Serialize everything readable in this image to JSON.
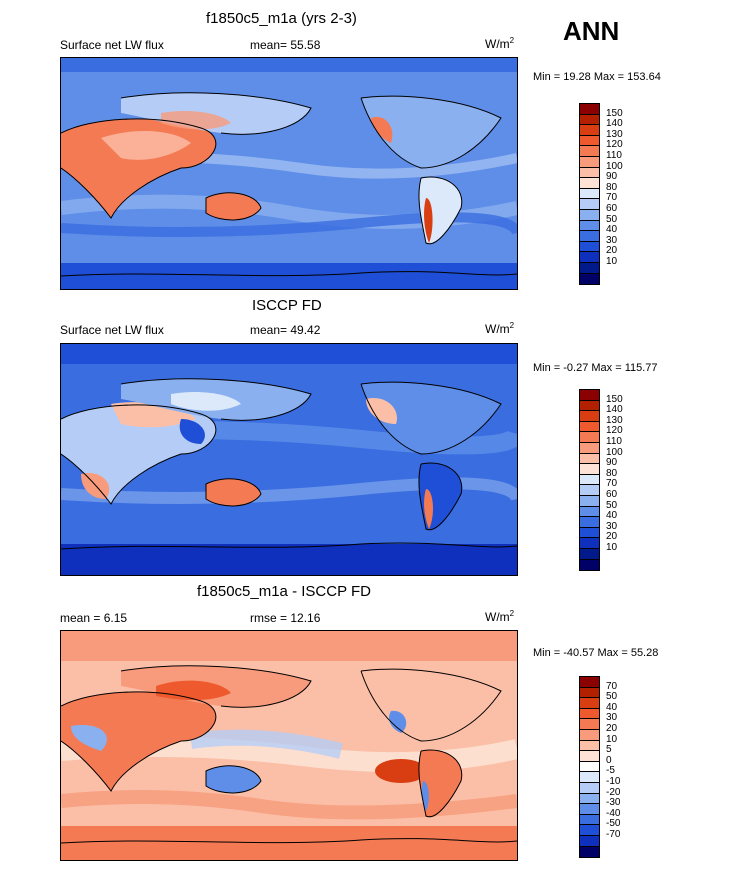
{
  "season_label": "ANN",
  "panels": [
    {
      "title": "f1850c5_m1a (yrs 2-3)",
      "left_label": "Surface net LW flux",
      "stat_label": "mean=",
      "stat_value": "55.58",
      "units_base": "W/m",
      "units_exp": "2",
      "minmax": "Min =  19.28 Max = 153.64",
      "colorbar": {
        "colors": [
          "#8b0000",
          "#b22000",
          "#d83e12",
          "#ee5a2e",
          "#f47a54",
          "#f89b7c",
          "#fbbfa7",
          "#fde2d5",
          "#dbe9fb",
          "#b5cdf6",
          "#8bb0ef",
          "#5e8ee8",
          "#3a6de0",
          "#1f4fd6",
          "#0f2fbd",
          "#001a8c",
          "#000066"
        ],
        "labels": [
          "150",
          "140",
          "130",
          "120",
          "110",
          "100",
          "90",
          "80",
          "70",
          "60",
          "50",
          "40",
          "30",
          "20",
          "10"
        ]
      }
    },
    {
      "title": "ISCCP FD",
      "left_label": "Surface net LW flux",
      "stat_label": "mean=",
      "stat_value": "49.42",
      "units_base": "W/m",
      "units_exp": "2",
      "minmax": "Min =  -0.27 Max = 115.77",
      "colorbar": {
        "colors": [
          "#8b0000",
          "#b22000",
          "#d83e12",
          "#ee5a2e",
          "#f47a54",
          "#f89b7c",
          "#fbbfa7",
          "#fde2d5",
          "#dbe9fb",
          "#b5cdf6",
          "#8bb0ef",
          "#5e8ee8",
          "#3a6de0",
          "#1f4fd6",
          "#0f2fbd",
          "#001a8c",
          "#000066"
        ],
        "labels": [
          "150",
          "140",
          "130",
          "120",
          "110",
          "100",
          "90",
          "80",
          "70",
          "60",
          "50",
          "40",
          "30",
          "20",
          "10"
        ]
      }
    },
    {
      "title": "f1850c5_m1a - ISCCP FD",
      "left_label": "mean =  6.15",
      "stat_label": "rmse =",
      "stat_value": "12.16",
      "units_base": "W/m",
      "units_exp": "2",
      "minmax": "Min = -40.57 Max =  55.28",
      "colorbar": {
        "colors": [
          "#8b0000",
          "#b22000",
          "#d83e12",
          "#ee5a2e",
          "#f47a54",
          "#f89b7c",
          "#fbbfa7",
          "#fde2d5",
          "#ffffff",
          "#dbe9fb",
          "#b5cdf6",
          "#8bb0ef",
          "#5e8ee8",
          "#3a6de0",
          "#1f4fd6",
          "#0f2fbd",
          "#000066"
        ],
        "labels": [
          "70",
          "50",
          "40",
          "30",
          "20",
          "10",
          "5",
          "0",
          "-5",
          "-10",
          "-20",
          "-30",
          "-40",
          "-50",
          "-70"
        ]
      }
    }
  ]
}
